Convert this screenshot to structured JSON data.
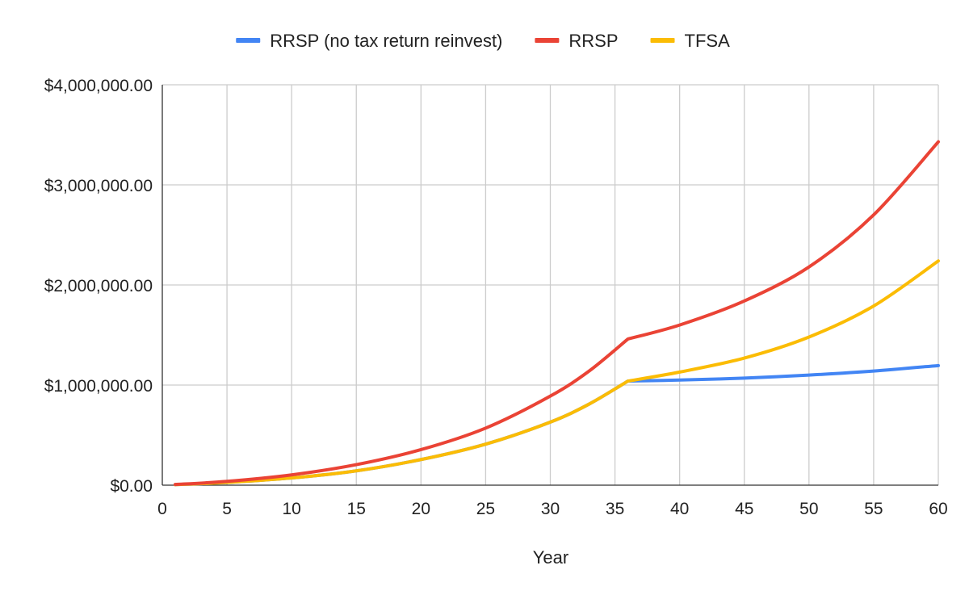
{
  "chart_data": {
    "type": "line",
    "title": "",
    "xlabel": "Year",
    "ylabel": "",
    "xlim": [
      0,
      60
    ],
    "ylim": [
      0,
      4000000
    ],
    "x_ticks": [
      0,
      5,
      10,
      15,
      20,
      25,
      30,
      35,
      40,
      45,
      50,
      55,
      60
    ],
    "x_tick_labels": [
      "0",
      "5",
      "10",
      "15",
      "20",
      "25",
      "30",
      "35",
      "40",
      "45",
      "50",
      "55",
      "60"
    ],
    "y_ticks": [
      0,
      1000000,
      2000000,
      3000000,
      4000000
    ],
    "y_tick_labels": [
      "$0.00",
      "$1,000,000.00",
      "$2,000,000.00",
      "$3,000,000.00",
      "$4,000,000.00"
    ],
    "grid": true,
    "legend_position": "top",
    "series": [
      {
        "name": "RRSP (no tax return reinvest)",
        "color": "#4285F4",
        "x": [
          1,
          5,
          10,
          15,
          20,
          25,
          30,
          33,
          36,
          40,
          45,
          50,
          55,
          60
        ],
        "values": [
          5000,
          27000,
          72000,
          143000,
          256000,
          410000,
          630000,
          810000,
          1040000,
          1050000,
          1070000,
          1100000,
          1140000,
          1195000
        ]
      },
      {
        "name": "RRSP",
        "color": "#EA4335",
        "x": [
          1,
          5,
          10,
          15,
          20,
          25,
          30,
          33,
          36,
          40,
          45,
          50,
          55,
          60
        ],
        "values": [
          7000,
          38000,
          103000,
          205000,
          355000,
          570000,
          890000,
          1140000,
          1460000,
          1600000,
          1840000,
          2180000,
          2700000,
          3430000
        ]
      },
      {
        "name": "TFSA",
        "color": "#FBBC04",
        "x": [
          1,
          5,
          10,
          15,
          20,
          25,
          30,
          33,
          36,
          40,
          45,
          50,
          55,
          60
        ],
        "values": [
          5000,
          27000,
          72000,
          143000,
          256000,
          410000,
          630000,
          810000,
          1040000,
          1130000,
          1270000,
          1480000,
          1790000,
          2240000
        ]
      }
    ]
  }
}
